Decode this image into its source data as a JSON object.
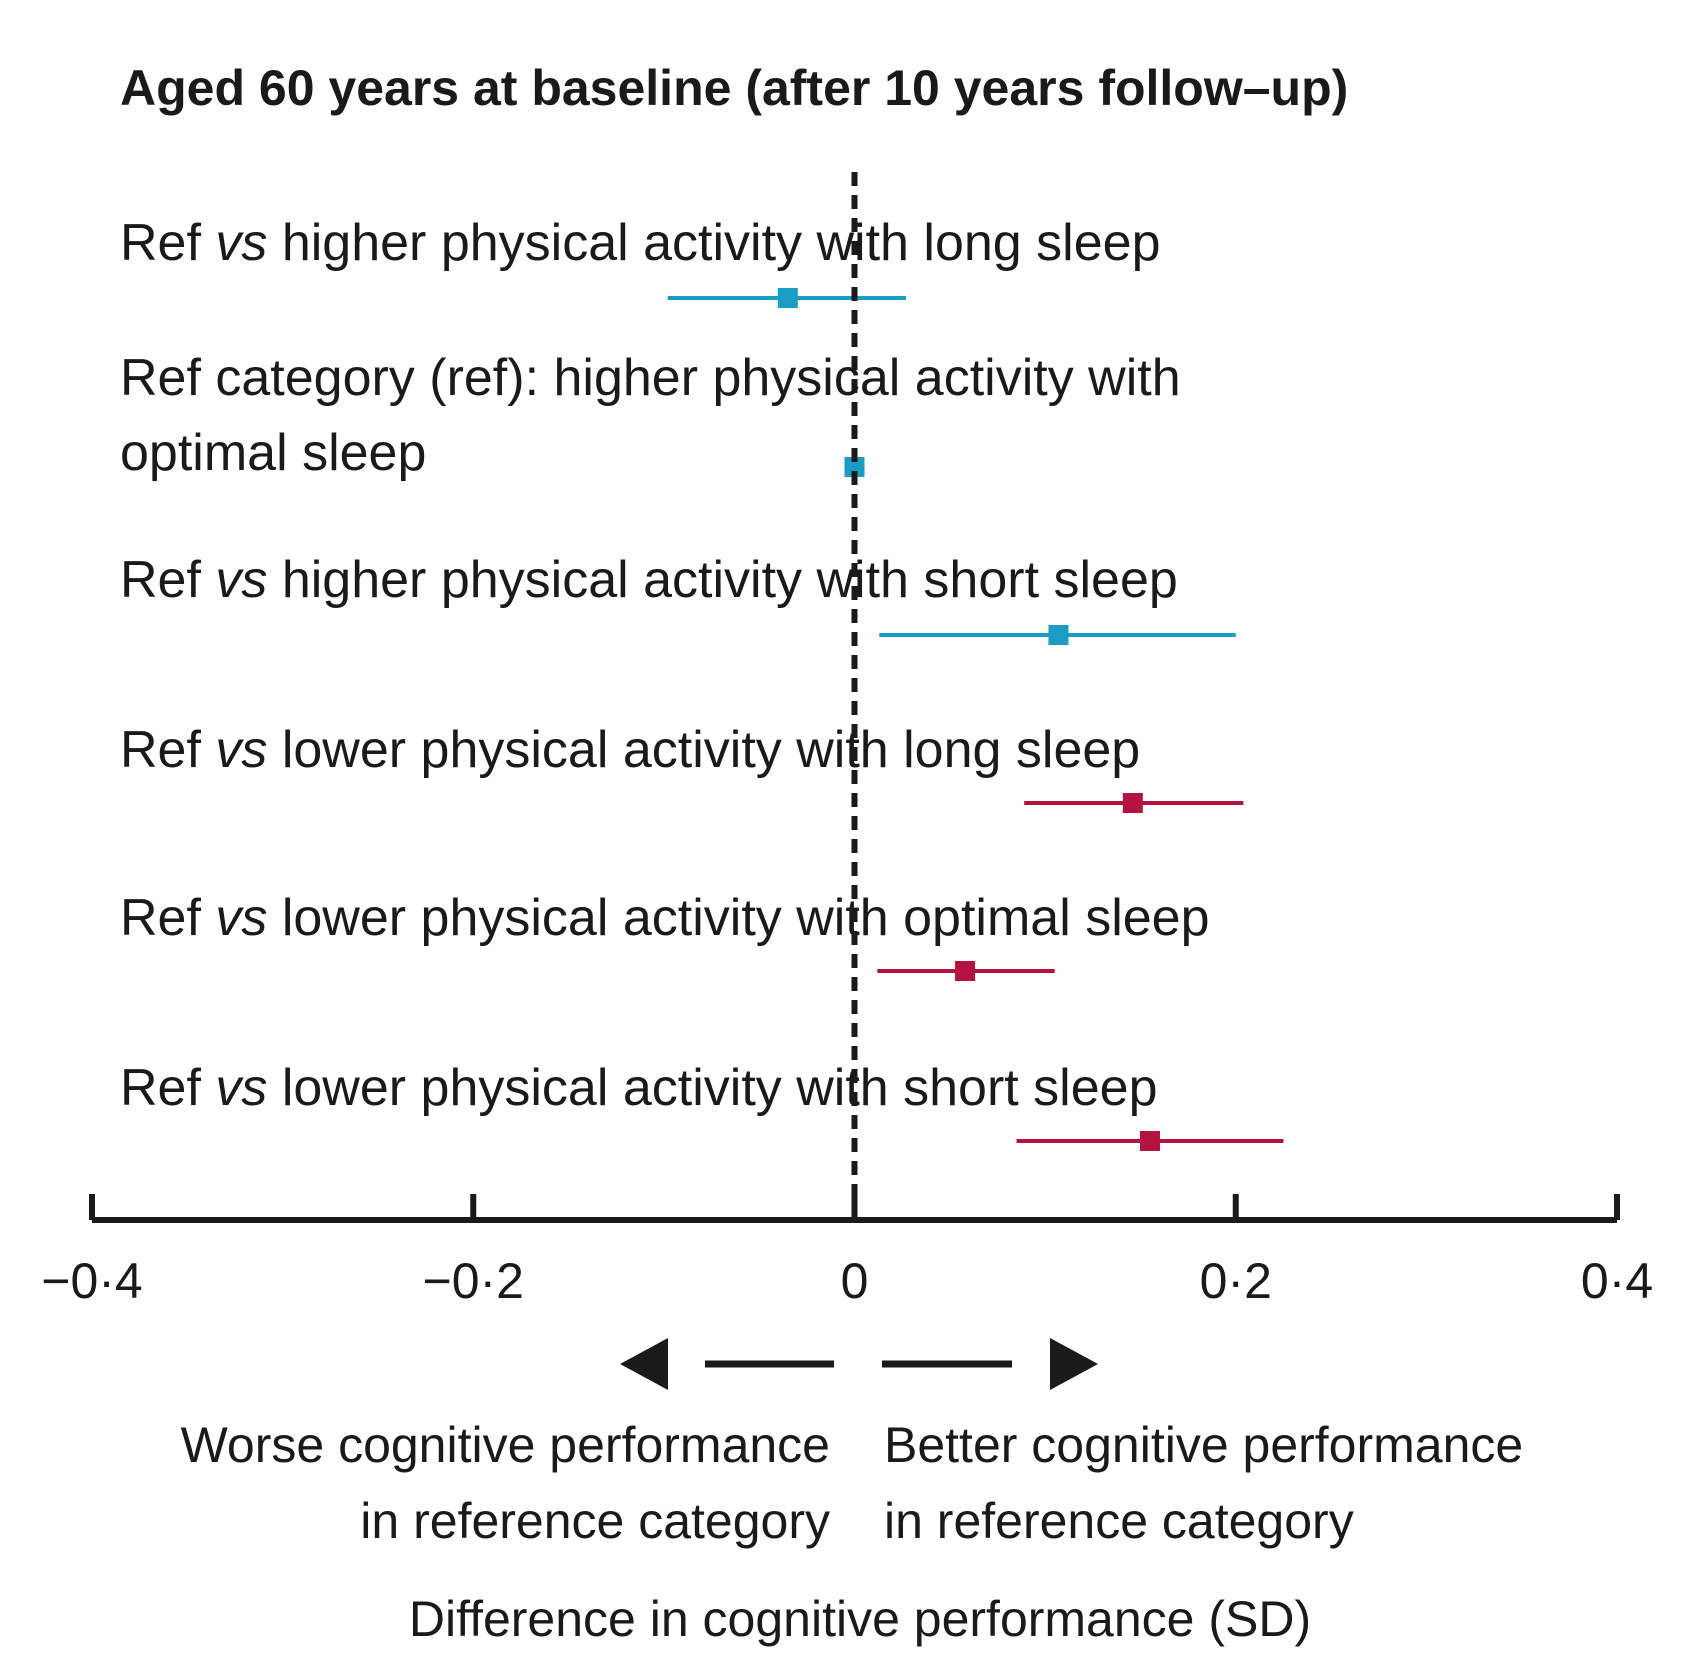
{
  "chart_data": {
    "type": "forest",
    "title": "Aged 60 years at baseline (after 10 years follow–up)",
    "xlabel": "Difference in cognitive performance (SD)",
    "xlim": [
      -0.4,
      0.4
    ],
    "xticks": [
      -0.4,
      -0.2,
      0,
      0.2,
      0.4
    ],
    "xtick_labels": [
      "−0·4",
      "−0·2",
      "0",
      "0·2",
      "0·4"
    ],
    "reference_line": 0,
    "direction_left": [
      "Worse cognitive performance",
      "in reference category"
    ],
    "direction_right": [
      "Better cognitive performance",
      "in reference category"
    ],
    "colors": {
      "higher_activity": "#1a9cc4",
      "lower_activity": "#b5133f",
      "axis": "#1a1a1a"
    },
    "rows": [
      {
        "label": [
          "Ref vs higher physical activity with long sleep"
        ],
        "estimate": -0.035,
        "ci": [
          -0.098,
          0.027
        ],
        "group": "higher_activity"
      },
      {
        "label": [
          "Ref category (ref): higher physical activity with",
          "optimal sleep"
        ],
        "estimate": 0.0,
        "ci": [
          0.0,
          0.0
        ],
        "group": "higher_activity",
        "reference": true
      },
      {
        "label": [
          "Ref vs higher physical activity with short sleep"
        ],
        "estimate": 0.107,
        "ci": [
          0.013,
          0.2
        ],
        "group": "higher_activity"
      },
      {
        "label": [
          "Ref vs lower physical activity with long sleep"
        ],
        "estimate": 0.146,
        "ci": [
          0.089,
          0.204
        ],
        "group": "lower_activity"
      },
      {
        "label": [
          "Ref vs lower physical activity with optimal sleep"
        ],
        "estimate": 0.058,
        "ci": [
          0.012,
          0.105
        ],
        "group": "lower_activity"
      },
      {
        "label": [
          "Ref vs lower physical activity with short sleep"
        ],
        "estimate": 0.155,
        "ci": [
          0.085,
          0.225
        ],
        "group": "lower_activity"
      }
    ]
  }
}
